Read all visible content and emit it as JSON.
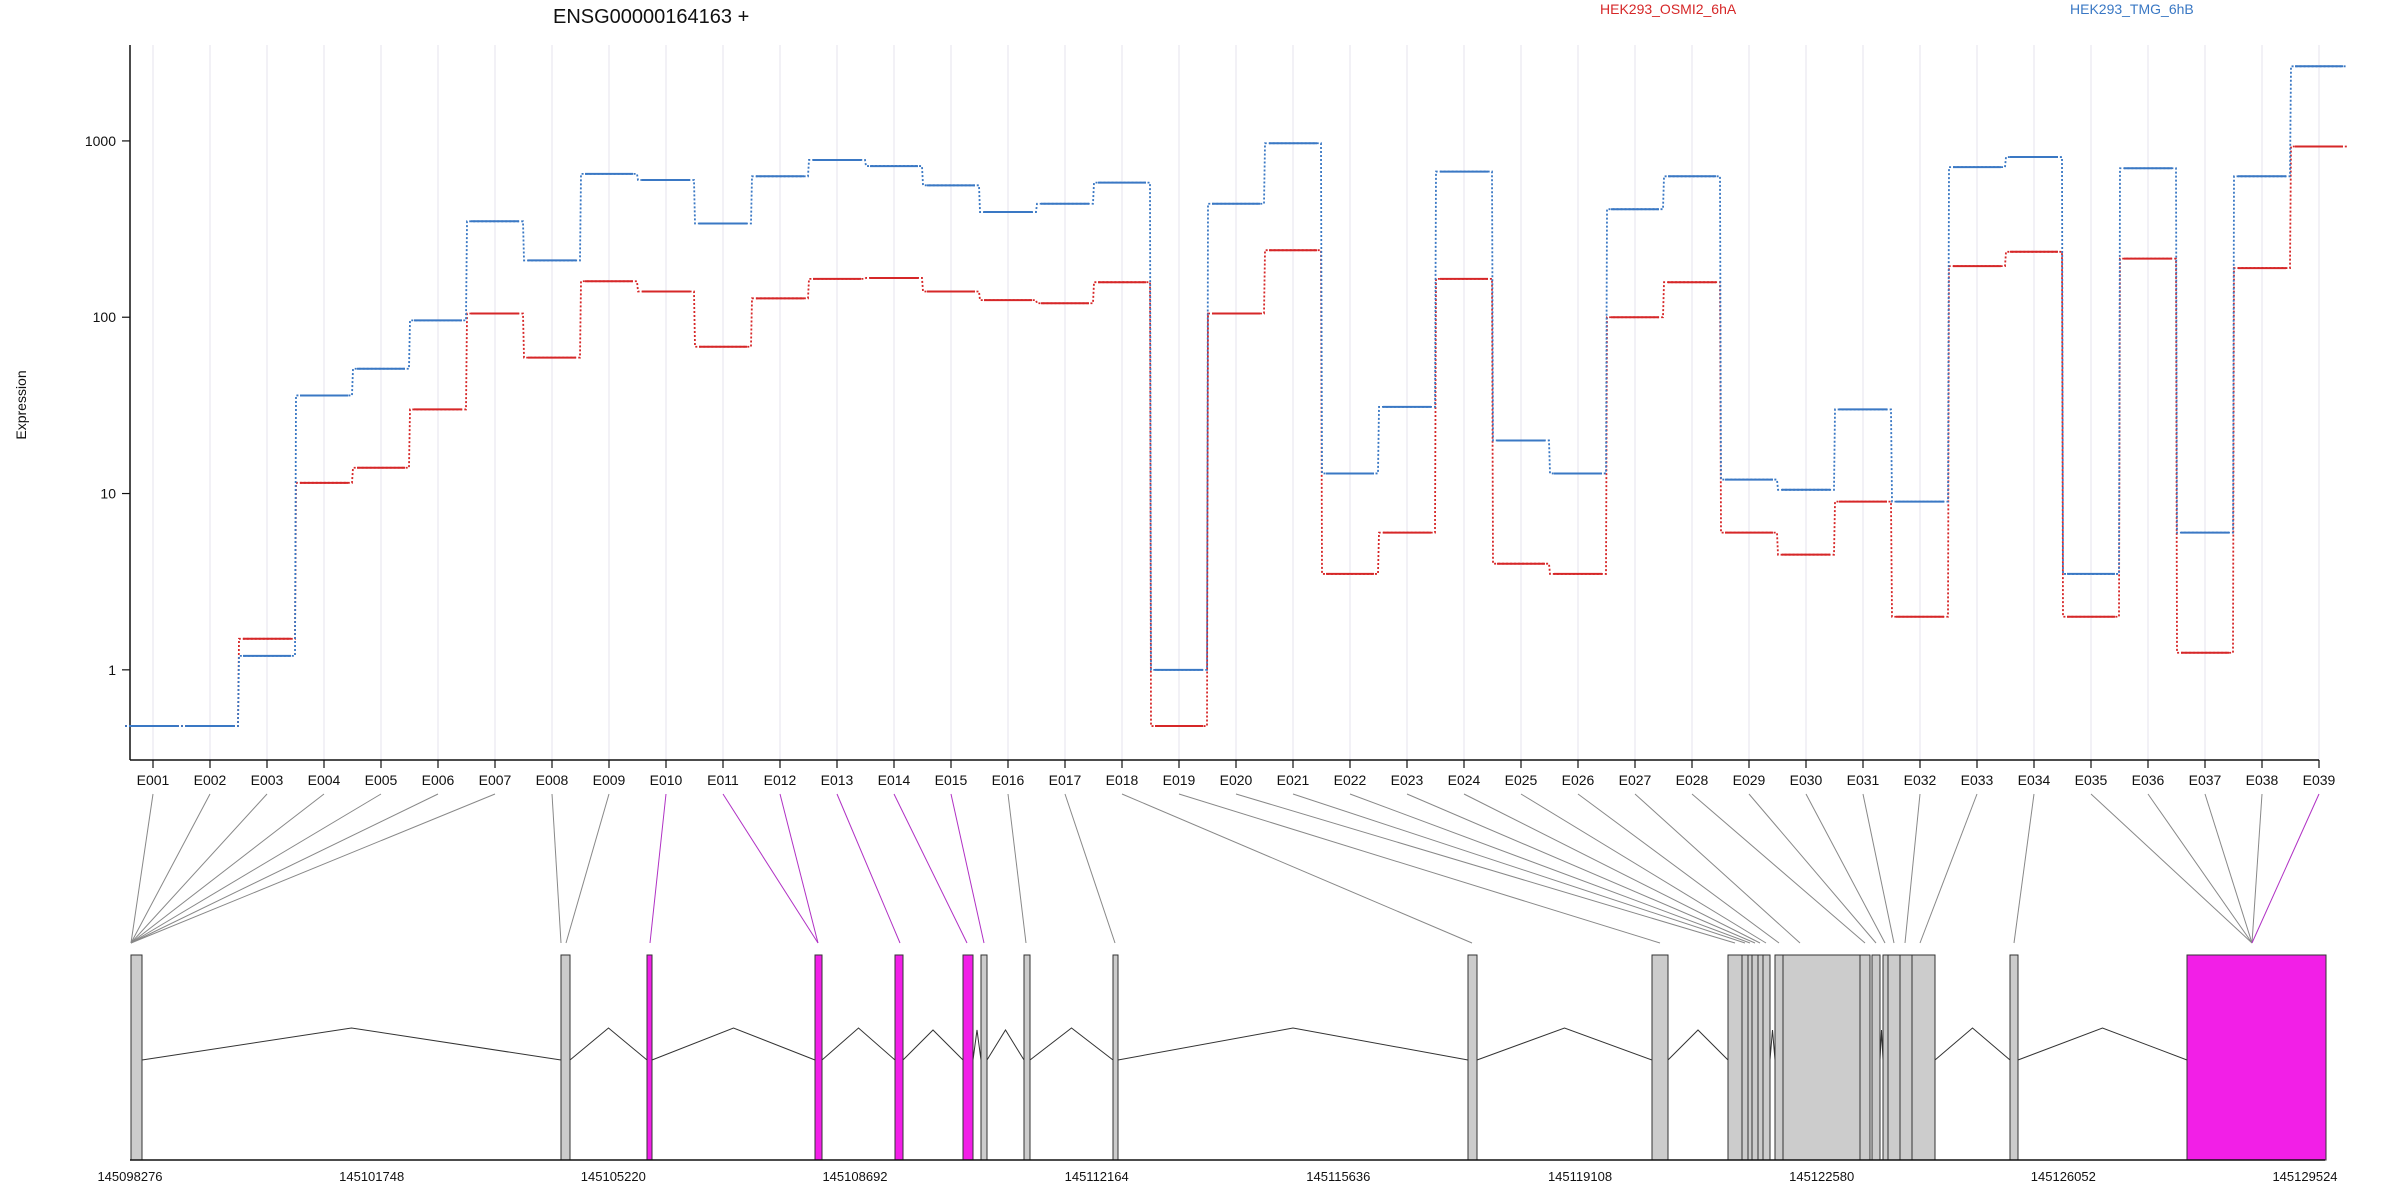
{
  "colors": {
    "series_a": "#d62728",
    "series_b": "#3a78c4",
    "exon_default_fill": "#cccccc",
    "exon_highlight_fill": "#f21fe7",
    "connector_default": "#888888",
    "connector_highlight": "#b031c4"
  },
  "chart_data": {
    "type": "line",
    "title": "ENSG00000164163 +",
    "ylabel": "Expression",
    "yscale": "log",
    "ylim": [
      0.4,
      3500
    ],
    "yticks": [
      {
        "value": 1,
        "label": "1"
      },
      {
        "value": 10,
        "label": "10"
      },
      {
        "value": 100,
        "label": "100"
      },
      {
        "value": 1000,
        "label": "1000"
      }
    ],
    "grid": true,
    "line_style": "dotted",
    "legend_position": "top",
    "categories": [
      "E001",
      "E002",
      "E003",
      "E004",
      "E005",
      "E006",
      "E007",
      "E008",
      "E009",
      "E010",
      "E011",
      "E012",
      "E013",
      "E014",
      "E015",
      "E016",
      "E017",
      "E018",
      "E019",
      "E020",
      "E021",
      "E022",
      "E023",
      "E024",
      "E025",
      "E026",
      "E027",
      "E028",
      "E029",
      "E030",
      "E031",
      "E032",
      "E033",
      "E034",
      "E035",
      "E036",
      "E037",
      "E038",
      "E039"
    ],
    "series": [
      {
        "name": "HEK293_OSMI2_6hA",
        "color": "#d62728",
        "values": [
          0.48,
          0.48,
          1.5,
          11.5,
          14,
          30,
          105,
          59,
          160,
          140,
          68,
          128,
          165,
          167,
          140,
          125,
          120,
          158,
          0.48,
          105,
          240,
          3.5,
          6,
          165,
          4,
          3.5,
          100,
          158,
          6,
          4.5,
          9,
          2,
          195,
          235,
          2,
          215,
          1.25,
          190,
          930
        ]
      },
      {
        "name": "HEK293_TMG_6hB",
        "color": "#3a78c4",
        "values": [
          0.48,
          0.48,
          1.2,
          36,
          51,
          96,
          350,
          210,
          650,
          600,
          340,
          630,
          780,
          720,
          560,
          395,
          440,
          580,
          1.0,
          440,
          970,
          13,
          31,
          670,
          20,
          13,
          410,
          630,
          12,
          10.5,
          30,
          9,
          710,
          810,
          3.5,
          700,
          6,
          630,
          2650
        ]
      }
    ],
    "genome": {
      "coord_ticks": [
        "145098276",
        "145101748",
        "145105220",
        "145108692",
        "145112164",
        "145115636",
        "145119108",
        "145122580",
        "145126052",
        "145129524"
      ]
    }
  }
}
